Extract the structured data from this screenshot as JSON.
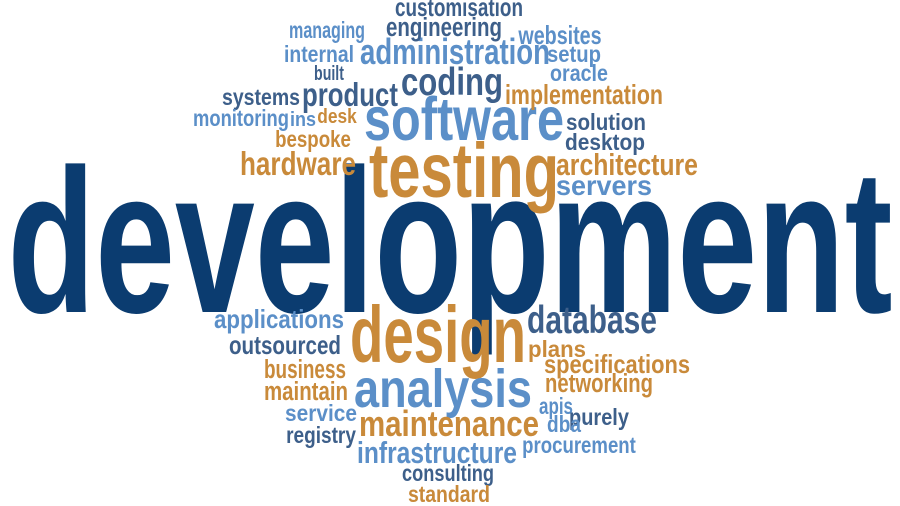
{
  "word_cloud": {
    "colors": {
      "navy": "#0b3c70",
      "slate": "#3d5f8a",
      "blue": "#5b8fc8",
      "gold": "#c98a3a"
    },
    "words": [
      {
        "text": "development",
        "color": "navy"
      },
      {
        "text": "testing",
        "color": "gold"
      },
      {
        "text": "software",
        "color": "blue"
      },
      {
        "text": "design",
        "color": "gold"
      },
      {
        "text": "analysis",
        "color": "blue"
      },
      {
        "text": "coding",
        "color": "slate"
      },
      {
        "text": "administration",
        "color": "blue"
      },
      {
        "text": "database",
        "color": "slate"
      },
      {
        "text": "maintenance",
        "color": "gold"
      },
      {
        "text": "infrastructure",
        "color": "blue"
      },
      {
        "text": "product",
        "color": "slate"
      },
      {
        "text": "hardware",
        "color": "gold"
      },
      {
        "text": "architecture",
        "color": "gold"
      },
      {
        "text": "servers",
        "color": "blue"
      },
      {
        "text": "implementation",
        "color": "gold"
      },
      {
        "text": "engineering",
        "color": "slate"
      },
      {
        "text": "customisation",
        "color": "slate"
      },
      {
        "text": "websites",
        "color": "blue"
      },
      {
        "text": "managing",
        "color": "blue"
      },
      {
        "text": "internal",
        "color": "blue"
      },
      {
        "text": "setup",
        "color": "blue"
      },
      {
        "text": "built",
        "color": "slate"
      },
      {
        "text": "oracle",
        "color": "blue"
      },
      {
        "text": "systems",
        "color": "slate"
      },
      {
        "text": "monitoring",
        "color": "blue"
      },
      {
        "text": "ins",
        "color": "blue"
      },
      {
        "text": "desk",
        "color": "gold"
      },
      {
        "text": "solution",
        "color": "slate"
      },
      {
        "text": "desktop",
        "color": "slate"
      },
      {
        "text": "bespoke",
        "color": "gold"
      },
      {
        "text": "applications",
        "color": "blue"
      },
      {
        "text": "outsourced",
        "color": "slate"
      },
      {
        "text": "plans",
        "color": "gold"
      },
      {
        "text": "specifications",
        "color": "gold"
      },
      {
        "text": "business",
        "color": "gold"
      },
      {
        "text": "maintain",
        "color": "gold"
      },
      {
        "text": "networking",
        "color": "gold"
      },
      {
        "text": "apis",
        "color": "blue"
      },
      {
        "text": "service",
        "color": "blue"
      },
      {
        "text": "purely",
        "color": "slate"
      },
      {
        "text": "registry",
        "color": "slate"
      },
      {
        "text": "dba",
        "color": "blue"
      },
      {
        "text": "procurement",
        "color": "blue"
      },
      {
        "text": "consulting",
        "color": "slate"
      },
      {
        "text": "standard",
        "color": "gold"
      }
    ]
  }
}
